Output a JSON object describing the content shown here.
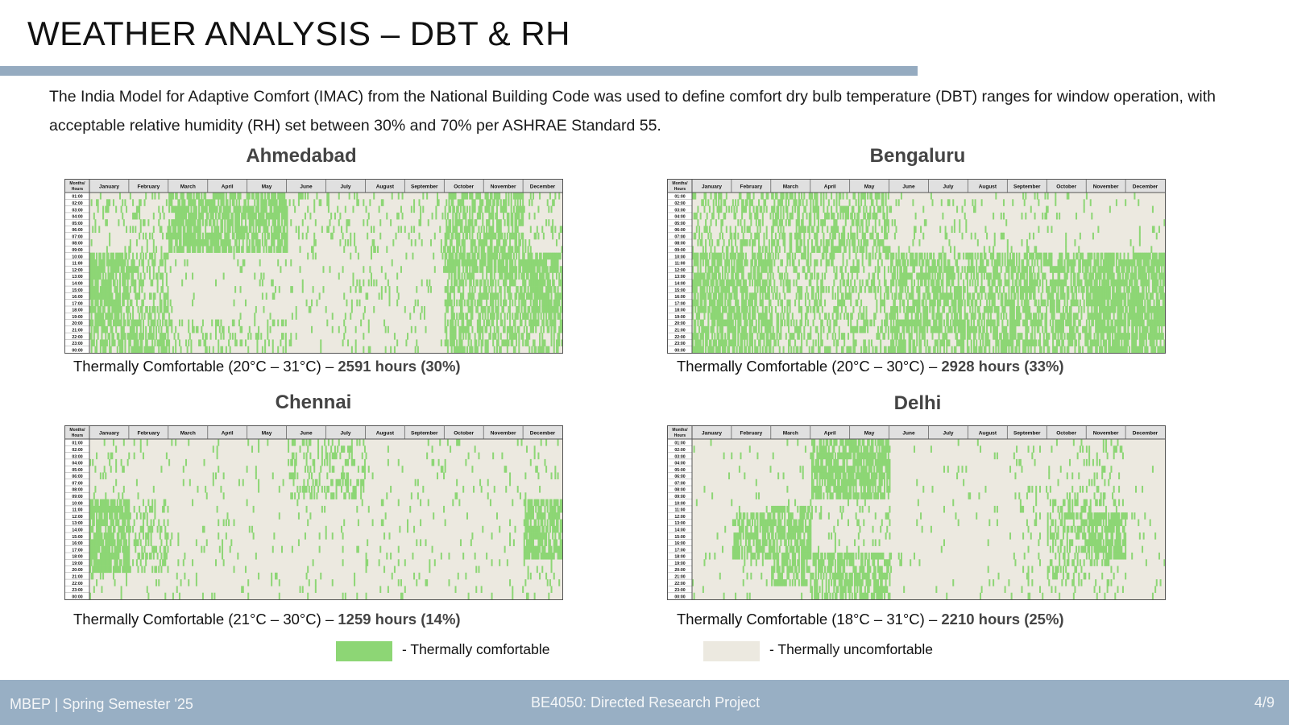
{
  "slide": {
    "title": "WEATHER ANALYSIS – DBT & RH",
    "intro": "The India Model for Adaptive Comfort (IMAC) from the National Building Code was used to define comfort dry bulb temperature (DBT) ranges for window operation, with acceptable relative humidity (RH) set between 30% and 70% per ASHRAE Standard 55."
  },
  "colors": {
    "comfortable": "#8dd675",
    "uncomfortable": "#ece9e0",
    "header": "#e0e0e0",
    "accent_bar": "#95abc0",
    "footer": "#98afc4"
  },
  "heatmap_labels": {
    "corner": [
      "Months/",
      "Hours"
    ],
    "months": [
      "January",
      "February",
      "March",
      "April",
      "May",
      "June",
      "July",
      "August",
      "September",
      "October",
      "November",
      "December"
    ],
    "hours": [
      "01:00",
      "02:00",
      "03:00",
      "04:00",
      "05:00",
      "06:00",
      "07:00",
      "08:00",
      "09:00",
      "10:00",
      "11:00",
      "12:00",
      "13:00",
      "14:00",
      "15:00",
      "16:00",
      "17:00",
      "18:00",
      "19:00",
      "20:00",
      "21:00",
      "22:00",
      "23:00",
      "00:00"
    ]
  },
  "chart_data": [
    {
      "type": "heatmap",
      "title": "Ahmedabad",
      "caption": {
        "text": "Thermally Comfortable (20°C – 31°C) – ",
        "bold": "2591 hours (30%)"
      },
      "comfortable_hours": 2591,
      "comfortable_percent": 30,
      "comfort_range_c": [
        20,
        31
      ]
    },
    {
      "type": "heatmap",
      "title": "Bengaluru",
      "caption": {
        "text": "Thermally Comfortable (20°C – 30°C) – ",
        "bold": "2928 hours (33%)"
      },
      "comfortable_hours": 2928,
      "comfortable_percent": 33,
      "comfort_range_c": [
        20,
        30
      ]
    },
    {
      "type": "heatmap",
      "title": "Chennai",
      "caption": {
        "text": "Thermally Comfortable (21°C – 30°C) – ",
        "bold": "1259 hours (14%)"
      },
      "comfortable_hours": 1259,
      "comfortable_percent": 14,
      "comfort_range_c": [
        21,
        30
      ]
    },
    {
      "type": "heatmap",
      "title": "Delhi",
      "caption": {
        "text": "Thermally Comfortable (18°C – 31°C) – ",
        "bold": "2210 hours (25%)"
      },
      "comfortable_hours": 2210,
      "comfortable_percent": 25,
      "comfort_range_c": [
        18,
        31
      ]
    }
  ],
  "legend": {
    "comfortable_label": "- Thermally comfortable",
    "uncomfortable_label": "- Thermally uncomfortable"
  },
  "footer": {
    "left": "MBEP | Spring Semester '25",
    "center": "BE4050: Directed Research Project",
    "page": "4/9"
  }
}
